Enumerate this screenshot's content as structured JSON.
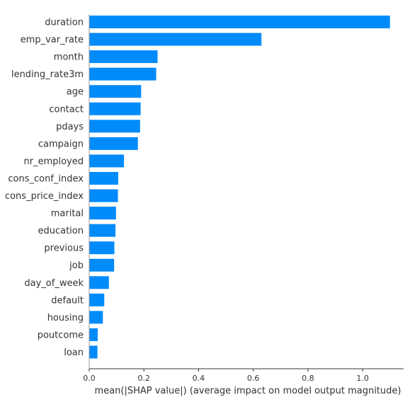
{
  "chart_data": {
    "type": "bar",
    "orientation": "horizontal",
    "categories": [
      "duration",
      "emp_var_rate",
      "month",
      "lending_rate3m",
      "age",
      "contact",
      "pdays",
      "campaign",
      "nr_employed",
      "cons_conf_index",
      "cons_price_index",
      "marital",
      "education",
      "previous",
      "job",
      "day_of_week",
      "default",
      "housing",
      "poutcome",
      "loan"
    ],
    "values": [
      1.1,
      0.63,
      0.25,
      0.245,
      0.19,
      0.188,
      0.186,
      0.178,
      0.127,
      0.106,
      0.105,
      0.098,
      0.096,
      0.092,
      0.091,
      0.072,
      0.055,
      0.05,
      0.031,
      0.03
    ],
    "title": "",
    "xlabel": "mean(|SHAP value|) (average impact on model output magnitude)",
    "ylabel": "",
    "xlim": [
      0,
      1.15
    ],
    "xticks": [
      0.0,
      0.2,
      0.4,
      0.6,
      0.8,
      1.0
    ],
    "xtick_labels": [
      "0.0",
      "0.2",
      "0.4",
      "0.6",
      "0.8",
      "1.0"
    ],
    "grid": false,
    "legend": "none",
    "bar_color": "#008bfb",
    "axis_color": "#333333"
  }
}
